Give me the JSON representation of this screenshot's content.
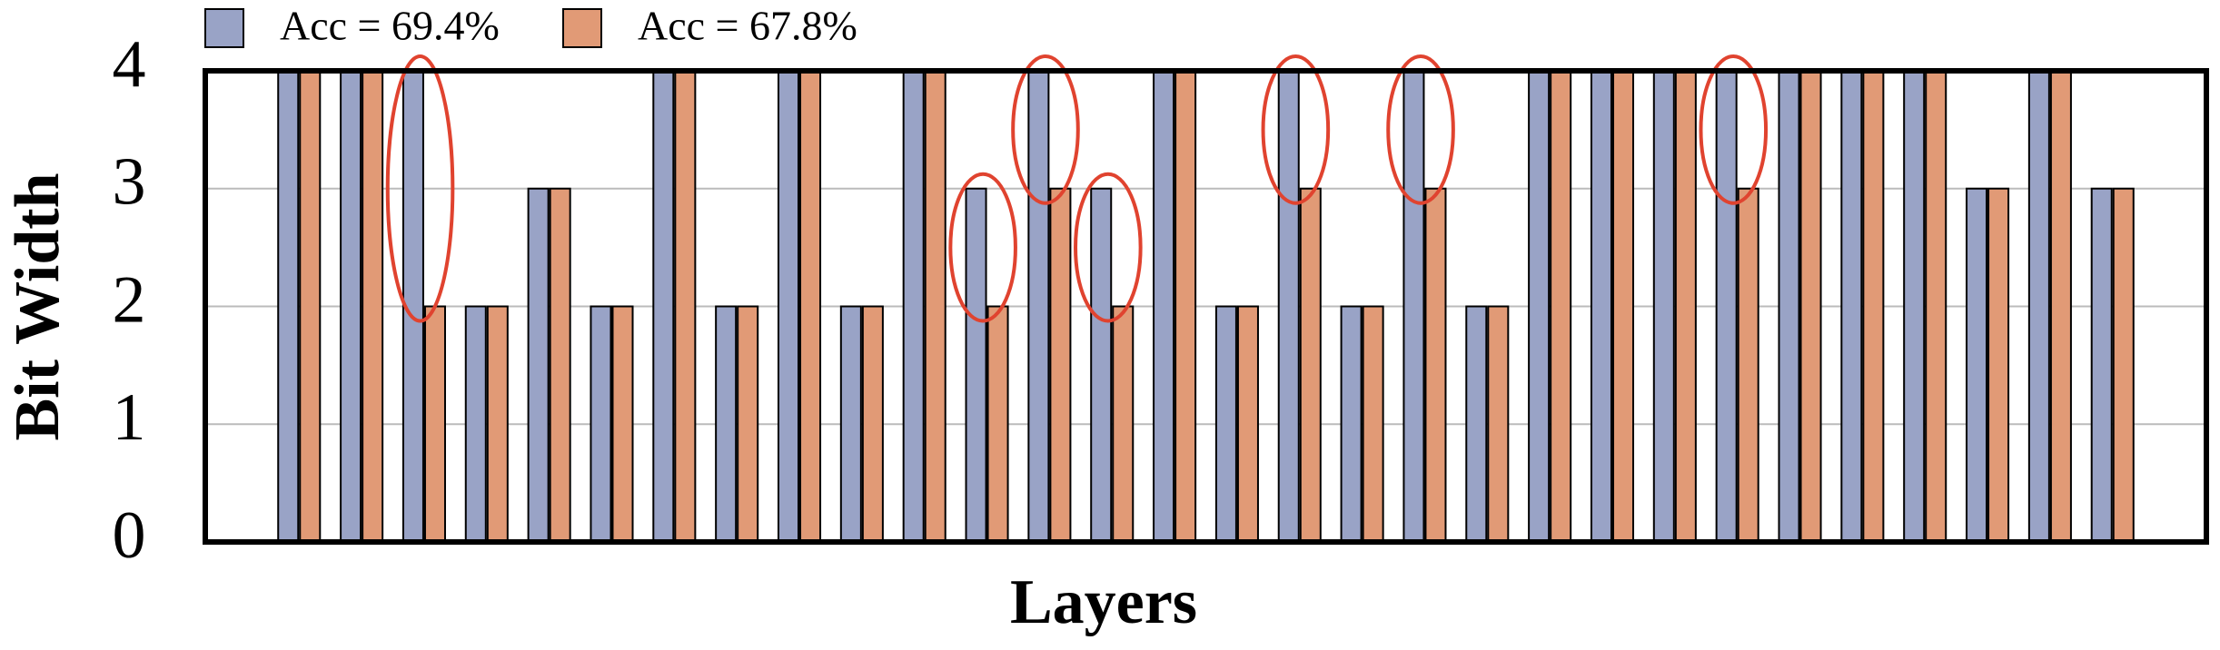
{
  "chart_data": {
    "type": "bar",
    "ylabel": "Bit Width",
    "xlabel": "Layers",
    "ylim": [
      0,
      4
    ],
    "yticks": [
      0,
      1,
      2,
      3,
      4
    ],
    "grid": true,
    "legend": "top-left",
    "series": [
      {
        "name": "Acc = 69.4%",
        "color": "#99a3c6",
        "values": [
          4,
          4,
          4,
          2,
          3,
          2,
          4,
          2,
          4,
          2,
          4,
          3,
          4,
          3,
          4,
          2,
          4,
          2,
          4,
          2,
          4,
          4,
          4,
          4,
          4,
          4,
          4,
          3,
          4,
          3
        ]
      },
      {
        "name": "Acc = 67.8%",
        "color": "#e19a76",
        "values": [
          4,
          4,
          2,
          2,
          3,
          2,
          4,
          2,
          4,
          2,
          4,
          2,
          3,
          2,
          4,
          2,
          3,
          2,
          3,
          2,
          4,
          4,
          4,
          3,
          4,
          4,
          4,
          3,
          4,
          3
        ]
      }
    ]
  }
}
